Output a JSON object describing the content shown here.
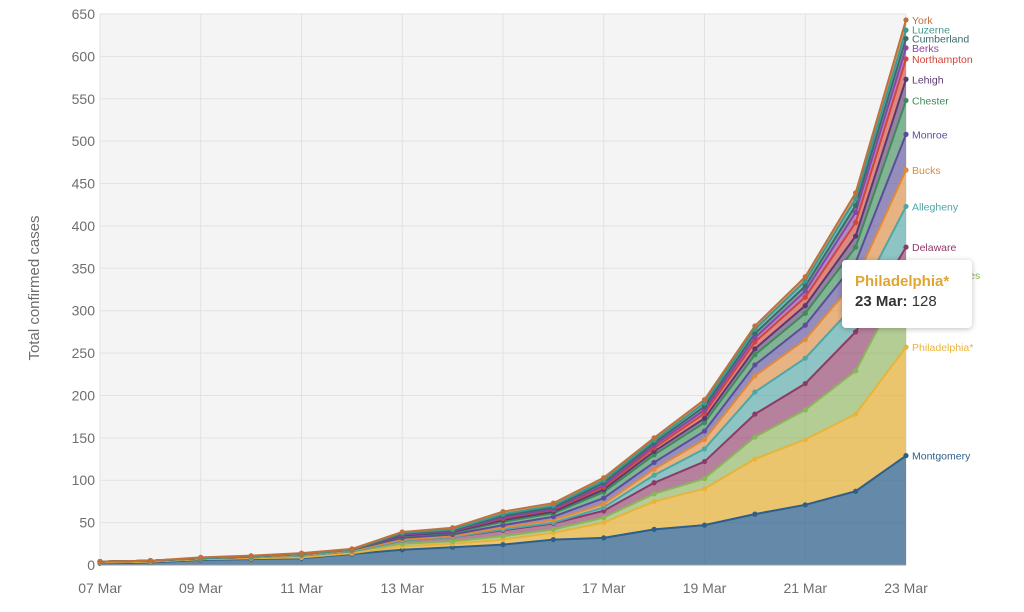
{
  "chart_data": {
    "type": "area",
    "stacked": true,
    "ylabel": "Total confirmed cases",
    "ylim": [
      0,
      650
    ],
    "yticks": [
      0,
      50,
      100,
      150,
      200,
      250,
      300,
      350,
      400,
      450,
      500,
      550,
      600,
      650
    ],
    "grid": true,
    "x": [
      "07 Mar",
      "08 Mar",
      "09 Mar",
      "10 Mar",
      "11 Mar",
      "12 Mar",
      "13 Mar",
      "14 Mar",
      "15 Mar",
      "16 Mar",
      "17 Mar",
      "18 Mar",
      "19 Mar",
      "20 Mar",
      "21 Mar",
      "22 Mar",
      "23 Mar"
    ],
    "xtick_labels": [
      "07 Mar",
      "09 Mar",
      "11 Mar",
      "13 Mar",
      "15 Mar",
      "17 Mar",
      "19 Mar",
      "21 Mar",
      "23 Mar"
    ],
    "series": [
      {
        "name": "Montgomery",
        "color": "#2e5f8a",
        "values": [
          2,
          3,
          6,
          7,
          8,
          13,
          18,
          21,
          24,
          30,
          32,
          42,
          47,
          60,
          71,
          87,
          129
        ]
      },
      {
        "name": "Philadelphia*",
        "color": "#e8b33a",
        "values": [
          1,
          1,
          1,
          1,
          1,
          1,
          4,
          4,
          6,
          8,
          18,
          33,
          43,
          65,
          77,
          91,
          128
        ]
      },
      {
        "name": "Other counties",
        "color": "#8ab55a",
        "values": [
          1,
          1,
          1,
          1,
          2,
          2,
          3,
          3,
          4,
          4,
          6,
          9,
          12,
          26,
          35,
          51,
          85
        ]
      },
      {
        "name": "Delaware",
        "color": "#8e3a68",
        "values": [
          0,
          0,
          0,
          0,
          0,
          0,
          4,
          5,
          7,
          7,
          8,
          13,
          20,
          27,
          31,
          46,
          33
        ]
      },
      {
        "name": "Allegheny",
        "color": "#4fa6a6",
        "values": [
          0,
          0,
          0,
          0,
          0,
          0,
          0,
          0,
          1,
          1,
          4,
          9,
          15,
          26,
          30,
          33,
          48
        ]
      },
      {
        "name": "Bucks",
        "color": "#e08a3c",
        "values": [
          0,
          0,
          0,
          0,
          1,
          1,
          1,
          1,
          2,
          3,
          4,
          7,
          11,
          19,
          22,
          28,
          43
        ]
      },
      {
        "name": "Monroe",
        "color": "#5a4e9a",
        "values": [
          0,
          0,
          0,
          1,
          1,
          1,
          2,
          2,
          3,
          4,
          7,
          8,
          10,
          13,
          17,
          21,
          42
        ]
      },
      {
        "name": "Chester",
        "color": "#3d8a5a",
        "values": [
          0,
          0,
          0,
          0,
          0,
          0,
          2,
          2,
          4,
          4,
          7,
          9,
          10,
          12,
          14,
          18,
          40
        ]
      },
      {
        "name": "Lehigh",
        "color": "#5a3a6e",
        "values": [
          0,
          0,
          0,
          0,
          0,
          0,
          1,
          1,
          2,
          2,
          3,
          4,
          5,
          7,
          9,
          13,
          25
        ]
      },
      {
        "name": "Northampton",
        "color": "#d1453b",
        "values": [
          0,
          0,
          0,
          0,
          0,
          0,
          1,
          1,
          2,
          2,
          3,
          4,
          6,
          8,
          10,
          16,
          24
        ]
      },
      {
        "name": "Berks",
        "color": "#8a45a8",
        "values": [
          0,
          0,
          0,
          0,
          0,
          0,
          0,
          0,
          1,
          1,
          2,
          3,
          4,
          5,
          7,
          12,
          13
        ]
      },
      {
        "name": "Cumberland",
        "color": "#3a6a6a",
        "values": [
          0,
          0,
          0,
          0,
          0,
          0,
          1,
          1,
          2,
          2,
          3,
          3,
          4,
          5,
          6,
          8,
          11
        ]
      },
      {
        "name": "Luzerne",
        "color": "#3e9a8e",
        "values": [
          0,
          0,
          0,
          0,
          0,
          0,
          1,
          1,
          2,
          2,
          3,
          3,
          4,
          5,
          6,
          8,
          10
        ]
      },
      {
        "name": "York",
        "color": "#c0703a",
        "values": [
          0,
          0,
          1,
          1,
          1,
          1,
          1,
          2,
          3,
          3,
          3,
          3,
          4,
          4,
          5,
          7,
          12
        ]
      }
    ],
    "tooltip": {
      "title": "Philadelphia*",
      "date": "23 Mar:",
      "value": "128"
    }
  }
}
